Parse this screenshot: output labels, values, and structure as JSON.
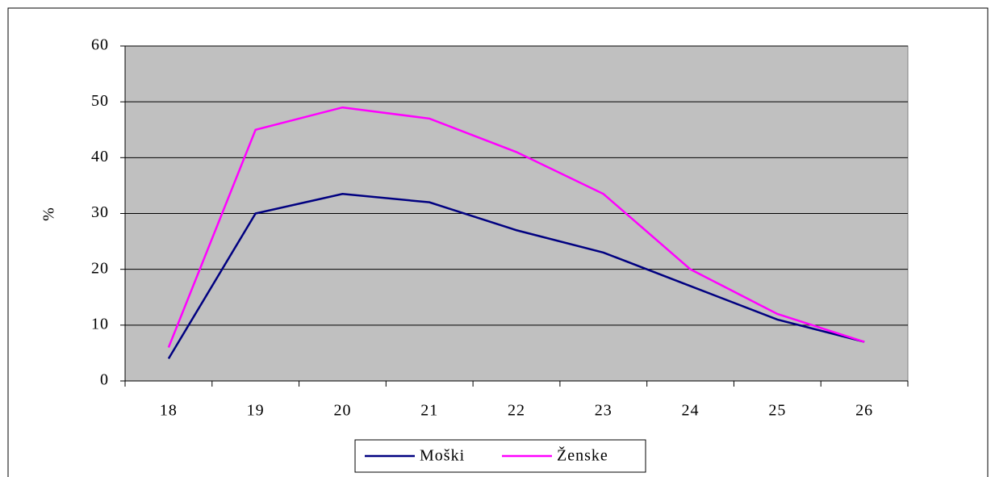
{
  "chart_data": {
    "type": "line",
    "y_label": "%",
    "categories": [
      "18",
      "19",
      "20",
      "21",
      "22",
      "23",
      "24",
      "25",
      "26"
    ],
    "series": [
      {
        "name": "Moški",
        "color": "#000080",
        "values": [
          4,
          30,
          33.5,
          32,
          27,
          23,
          17,
          11,
          7
        ]
      },
      {
        "name": "Ženske",
        "color": "#ff00ff",
        "values": [
          6,
          45,
          49,
          47,
          41,
          33.5,
          20,
          12,
          7
        ]
      }
    ],
    "ylim": [
      0,
      60
    ],
    "yticks": [
      0,
      10,
      20,
      30,
      40,
      50,
      60
    ],
    "grid": true,
    "legend": "bottom"
  }
}
